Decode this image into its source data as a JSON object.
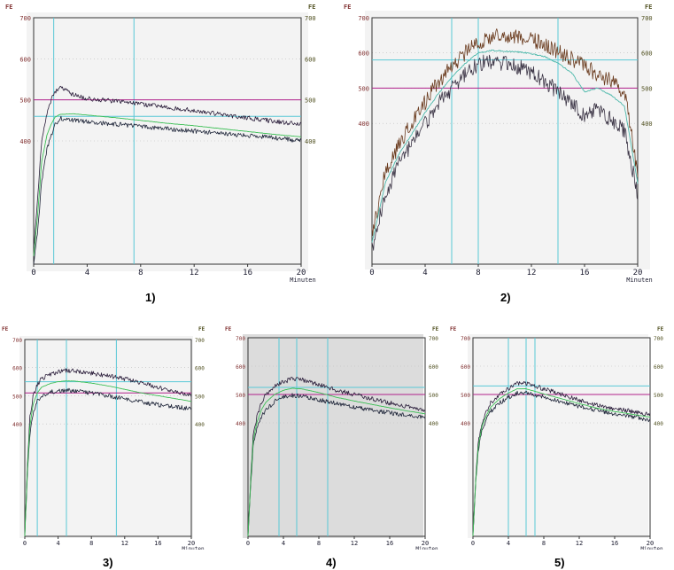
{
  "colors": {
    "plot_bg": "#f3f3f3",
    "plot_bg_alt": "#dcdcdc",
    "frame": "#333333",
    "grid": "#bbbbbb",
    "cyan": "#58c8d6",
    "magenta": "#b0208a",
    "upper": "#2a1d3a",
    "lower": "#1d2438",
    "mean": "#3cbf55",
    "axis_text_left": "#803030",
    "axis_text_right": "#505020",
    "tick_text": "#1a1a2e",
    "panel2_upper": "#6a3b1e",
    "panel2_lower": "#3a3344",
    "panel2_mean": "#4bb8aa"
  },
  "chart_data": [
    {
      "id": "1",
      "caption": "1)",
      "type": "line",
      "ylabel_left": "FE",
      "ylabel_right": "FE",
      "xlabel": "Minuten",
      "xlim": [
        0,
        20
      ],
      "ylim": [
        100,
        700
      ],
      "xticks": [
        0,
        4,
        8,
        12,
        16,
        20
      ],
      "yticks_left": [
        400,
        500,
        600,
        700
      ],
      "yticks_right": [
        400,
        500,
        600,
        700
      ],
      "vlines": [
        1.5,
        7.5
      ],
      "hlines": [
        460
      ],
      "ref_line": 500,
      "series": [
        {
          "x": [
            0,
            0.3,
            0.6,
            1,
            1.3,
            1.6,
            2,
            3,
            4,
            6,
            8,
            10,
            12,
            14,
            16,
            18,
            20
          ],
          "y": [
            140,
            260,
            400,
            470,
            500,
            520,
            530,
            512,
            503,
            497,
            490,
            482,
            474,
            465,
            456,
            448,
            440
          ]
        },
        {
          "x": [
            0,
            0.3,
            0.6,
            1,
            1.3,
            1.6,
            2,
            3,
            4,
            6,
            8,
            10,
            12,
            14,
            16,
            18,
            20
          ],
          "y": [
            120,
            220,
            350,
            415,
            440,
            458,
            465,
            466,
            463,
            457,
            450,
            443,
            437,
            430,
            423,
            416,
            410
          ]
        },
        {
          "x": [
            0,
            0.3,
            0.6,
            1,
            1.3,
            1.6,
            2,
            3,
            4,
            6,
            8,
            10,
            12,
            14,
            16,
            18,
            20
          ],
          "y": [
            100,
            180,
            300,
            380,
            410,
            440,
            455,
            450,
            447,
            441,
            436,
            430,
            424,
            418,
            413,
            408,
            400
          ]
        }
      ]
    },
    {
      "id": "2",
      "caption": "2)",
      "type": "line",
      "ylabel_left": "FE",
      "ylabel_right": "FE",
      "xlabel": "Minuten",
      "xlim": [
        0,
        20
      ],
      "ylim": [
        0,
        700
      ],
      "xticks": [
        0,
        4,
        8,
        12,
        16,
        20
      ],
      "yticks_left": [
        400,
        500,
        600,
        700
      ],
      "yticks_right": [
        400,
        500,
        600,
        700
      ],
      "vlines": [
        6,
        8,
        14
      ],
      "hlines": [
        580
      ],
      "ref_line": 500,
      "series": [
        {
          "x": [
            0,
            1,
            2,
            3,
            4,
            5,
            6,
            7,
            8,
            9,
            10,
            11,
            12,
            13,
            14,
            15,
            16,
            17,
            18,
            19,
            20
          ],
          "y": [
            80,
            260,
            340,
            400,
            460,
            520,
            560,
            600,
            630,
            645,
            650,
            645,
            640,
            625,
            605,
            585,
            560,
            540,
            520,
            490,
            260
          ]
        },
        {
          "x": [
            0,
            1,
            2,
            3,
            4,
            5,
            6,
            7,
            8,
            9,
            10,
            11,
            12,
            13,
            14,
            15,
            16,
            17,
            18,
            19,
            20
          ],
          "y": [
            60,
            230,
            310,
            370,
            430,
            485,
            530,
            570,
            600,
            607,
            605,
            603,
            598,
            590,
            570,
            545,
            490,
            500,
            480,
            450,
            230
          ]
        },
        {
          "x": [
            0,
            1,
            2,
            3,
            4,
            5,
            6,
            7,
            8,
            9,
            10,
            11,
            12,
            13,
            14,
            15,
            16,
            17,
            18,
            19,
            20
          ],
          "y": [
            40,
            200,
            280,
            340,
            400,
            455,
            500,
            540,
            570,
            575,
            570,
            560,
            545,
            520,
            490,
            460,
            420,
            440,
            410,
            380,
            200
          ]
        }
      ]
    },
    {
      "id": "3",
      "caption": "3)",
      "type": "line",
      "ylabel_left": "FE",
      "ylabel_right": "FE",
      "xlabel": "Minuten",
      "xlim": [
        0,
        20
      ],
      "ylim": [
        0,
        700
      ],
      "xticks": [
        0,
        4,
        8,
        12,
        16,
        20
      ],
      "yticks_left": [
        400,
        500,
        600,
        700
      ],
      "yticks_right": [
        400,
        500,
        600,
        700
      ],
      "vlines": [
        1.5,
        5,
        11
      ],
      "hlines": [
        550
      ],
      "ref_line": 510,
      "series": [
        {
          "x": [
            0,
            0.3,
            0.6,
            1,
            1.5,
            2,
            3,
            4,
            5,
            6,
            8,
            10,
            12,
            14,
            16,
            18,
            20
          ],
          "y": [
            0,
            250,
            420,
            500,
            540,
            560,
            575,
            585,
            590,
            588,
            580,
            570,
            560,
            545,
            530,
            515,
            500
          ]
        },
        {
          "x": [
            0,
            0.3,
            0.6,
            1,
            1.5,
            2,
            3,
            4,
            5,
            6,
            8,
            10,
            12,
            14,
            16,
            18,
            20
          ],
          "y": [
            0,
            230,
            390,
            470,
            510,
            530,
            543,
            550,
            553,
            552,
            545,
            535,
            523,
            510,
            500,
            490,
            480
          ]
        },
        {
          "x": [
            0,
            0.3,
            0.6,
            1,
            1.5,
            2,
            3,
            4,
            5,
            6,
            8,
            10,
            12,
            14,
            16,
            18,
            20
          ],
          "y": [
            0,
            210,
            360,
            440,
            480,
            500,
            512,
            518,
            520,
            517,
            510,
            500,
            490,
            478,
            468,
            460,
            455
          ]
        }
      ]
    },
    {
      "id": "4",
      "caption": "4)",
      "type": "line",
      "ylabel_left": "FE",
      "ylabel_right": "FE",
      "xlabel": "Minuten",
      "xlim": [
        0,
        20
      ],
      "ylim": [
        0,
        700
      ],
      "xticks": [
        0,
        4,
        8,
        12,
        16,
        20
      ],
      "yticks_left": [
        400,
        500,
        600,
        700
      ],
      "yticks_right": [
        400,
        500,
        600,
        700
      ],
      "vlines": [
        3.5,
        5.5,
        9
      ],
      "hlines": [
        525
      ],
      "ref_line": 500,
      "series": [
        {
          "x": [
            0,
            0.3,
            0.6,
            1,
            1.5,
            2,
            3,
            4,
            5,
            6,
            8,
            10,
            12,
            14,
            16,
            18,
            20
          ],
          "y": [
            0,
            200,
            360,
            420,
            470,
            500,
            530,
            545,
            555,
            552,
            535,
            515,
            500,
            485,
            470,
            458,
            445
          ]
        },
        {
          "x": [
            0,
            0.3,
            0.6,
            1,
            1.5,
            2,
            3,
            4,
            5,
            6,
            8,
            10,
            12,
            14,
            16,
            18,
            20
          ],
          "y": [
            0,
            190,
            340,
            400,
            445,
            472,
            500,
            515,
            522,
            520,
            507,
            490,
            477,
            465,
            453,
            442,
            432
          ]
        },
        {
          "x": [
            0,
            0.3,
            0.6,
            1,
            1.5,
            2,
            3,
            4,
            5,
            6,
            8,
            10,
            12,
            14,
            16,
            18,
            20
          ],
          "y": [
            0,
            180,
            320,
            380,
            420,
            445,
            475,
            490,
            497,
            495,
            482,
            468,
            455,
            445,
            435,
            425,
            418
          ]
        }
      ]
    },
    {
      "id": "5",
      "caption": "5)",
      "type": "line",
      "ylabel_left": "FE",
      "ylabel_right": "FE",
      "xlabel": "Minuten",
      "xlim": [
        0,
        20
      ],
      "ylim": [
        0,
        700
      ],
      "xticks": [
        0,
        4,
        8,
        12,
        16,
        20
      ],
      "yticks_left": [
        400,
        500,
        600,
        700
      ],
      "yticks_right": [
        400,
        500,
        600,
        700
      ],
      "vlines": [
        4,
        6,
        7
      ],
      "hlines": [
        530
      ],
      "ref_line": 500,
      "series": [
        {
          "x": [
            0,
            0.3,
            0.6,
            1,
            1.5,
            2,
            3,
            4,
            5,
            6,
            8,
            10,
            12,
            14,
            16,
            18,
            20
          ],
          "y": [
            0,
            200,
            330,
            400,
            440,
            470,
            500,
            520,
            540,
            540,
            520,
            500,
            480,
            462,
            450,
            440,
            430
          ]
        },
        {
          "x": [
            0,
            0.3,
            0.6,
            1,
            1.5,
            2,
            3,
            4,
            5,
            6,
            8,
            10,
            12,
            14,
            16,
            18,
            20
          ],
          "y": [
            0,
            190,
            315,
            385,
            425,
            455,
            485,
            505,
            520,
            520,
            502,
            485,
            468,
            452,
            440,
            430,
            420
          ]
        },
        {
          "x": [
            0,
            0.3,
            0.6,
            1,
            1.5,
            2,
            3,
            4,
            5,
            6,
            8,
            10,
            12,
            14,
            16,
            18,
            20
          ],
          "y": [
            0,
            180,
            300,
            370,
            410,
            440,
            470,
            490,
            505,
            505,
            490,
            474,
            458,
            444,
            432,
            422,
            410
          ]
        }
      ]
    }
  ]
}
